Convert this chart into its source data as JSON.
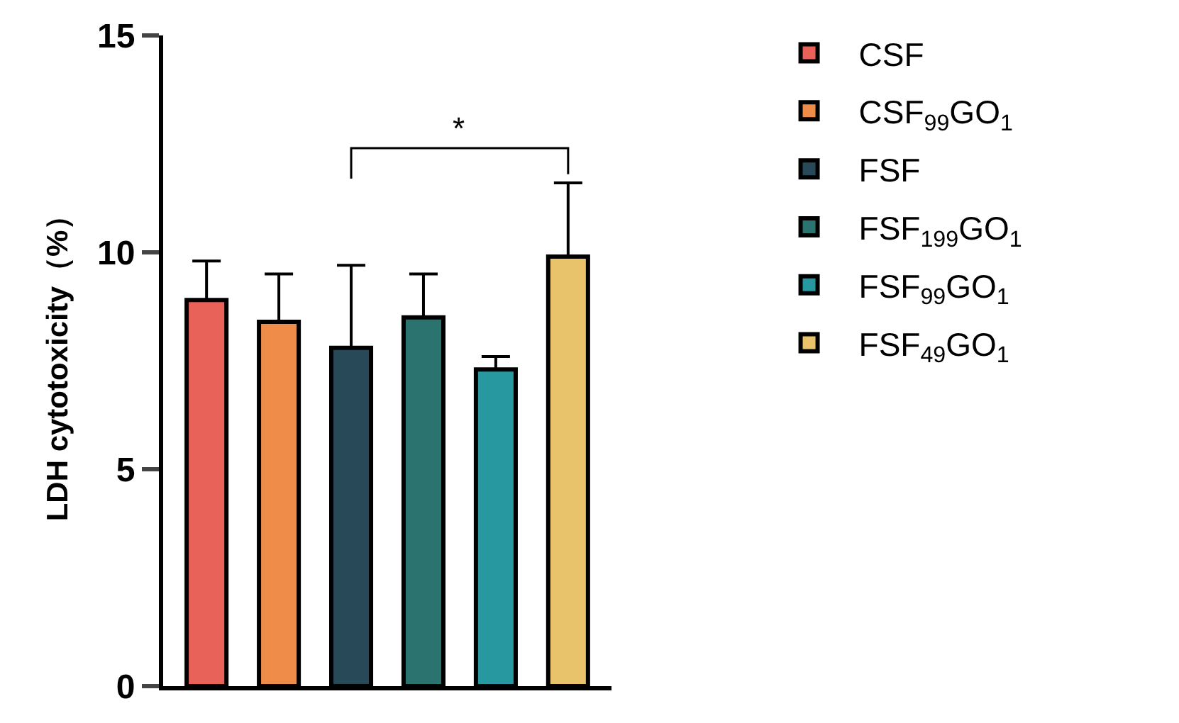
{
  "chart_data": {
    "type": "bar",
    "ylabel": "LDH cytotoxicity（%）",
    "categories": [
      null,
      null,
      null,
      null,
      null,
      null
    ],
    "series": [
      {
        "name": "CSF",
        "color": "#e8625a",
        "values": [
          8.9,
          null,
          null,
          null,
          null,
          null
        ],
        "errors": [
          [
            8.9,
            9.8
          ],
          null,
          null,
          null,
          null,
          null
        ]
      },
      {
        "name": "CSF$_{99}$GO$_{1}$",
        "color": "#ef8c4a",
        "values": [
          null,
          8.4,
          null,
          null,
          null,
          null
        ],
        "errors": [
          null,
          [
            8.4,
            9.5
          ],
          null,
          null,
          null,
          null
        ]
      },
      {
        "name": "FSF",
        "color": "#284a58",
        "values": [
          null,
          null,
          7.8,
          null,
          null,
          null
        ],
        "errors": [
          null,
          null,
          [
            7.8,
            9.7
          ],
          null,
          null,
          null
        ]
      },
      {
        "name": "FSF$_{199}$GO$_{1}$",
        "color": "#2a736f",
        "values": [
          null,
          null,
          null,
          8.5,
          null,
          null
        ],
        "errors": [
          null,
          null,
          null,
          [
            8.5,
            9.5
          ],
          null,
          null
        ]
      },
      {
        "name": "FSF$_{99}$GO$_{1}$",
        "color": "#2898a0",
        "values": [
          null,
          null,
          null,
          null,
          7.3,
          null
        ],
        "errors": [
          null,
          null,
          null,
          null,
          [
            7.3,
            7.6
          ],
          null
        ]
      },
      {
        "name": "FSF$_{49}$GO$_{1}$",
        "color": "#e8c36c",
        "values": [
          null,
          null,
          null,
          null,
          null,
          9.9
        ],
        "errors": [
          null,
          null,
          null,
          null,
          null,
          [
            9.9,
            11.6
          ]
        ]
      }
    ],
    "annotations": [
      "*"
    ],
    "ylim": [
      0,
      15
    ],
    "yticks": [
      0,
      5,
      10,
      15
    ],
    "legend": "right"
  }
}
